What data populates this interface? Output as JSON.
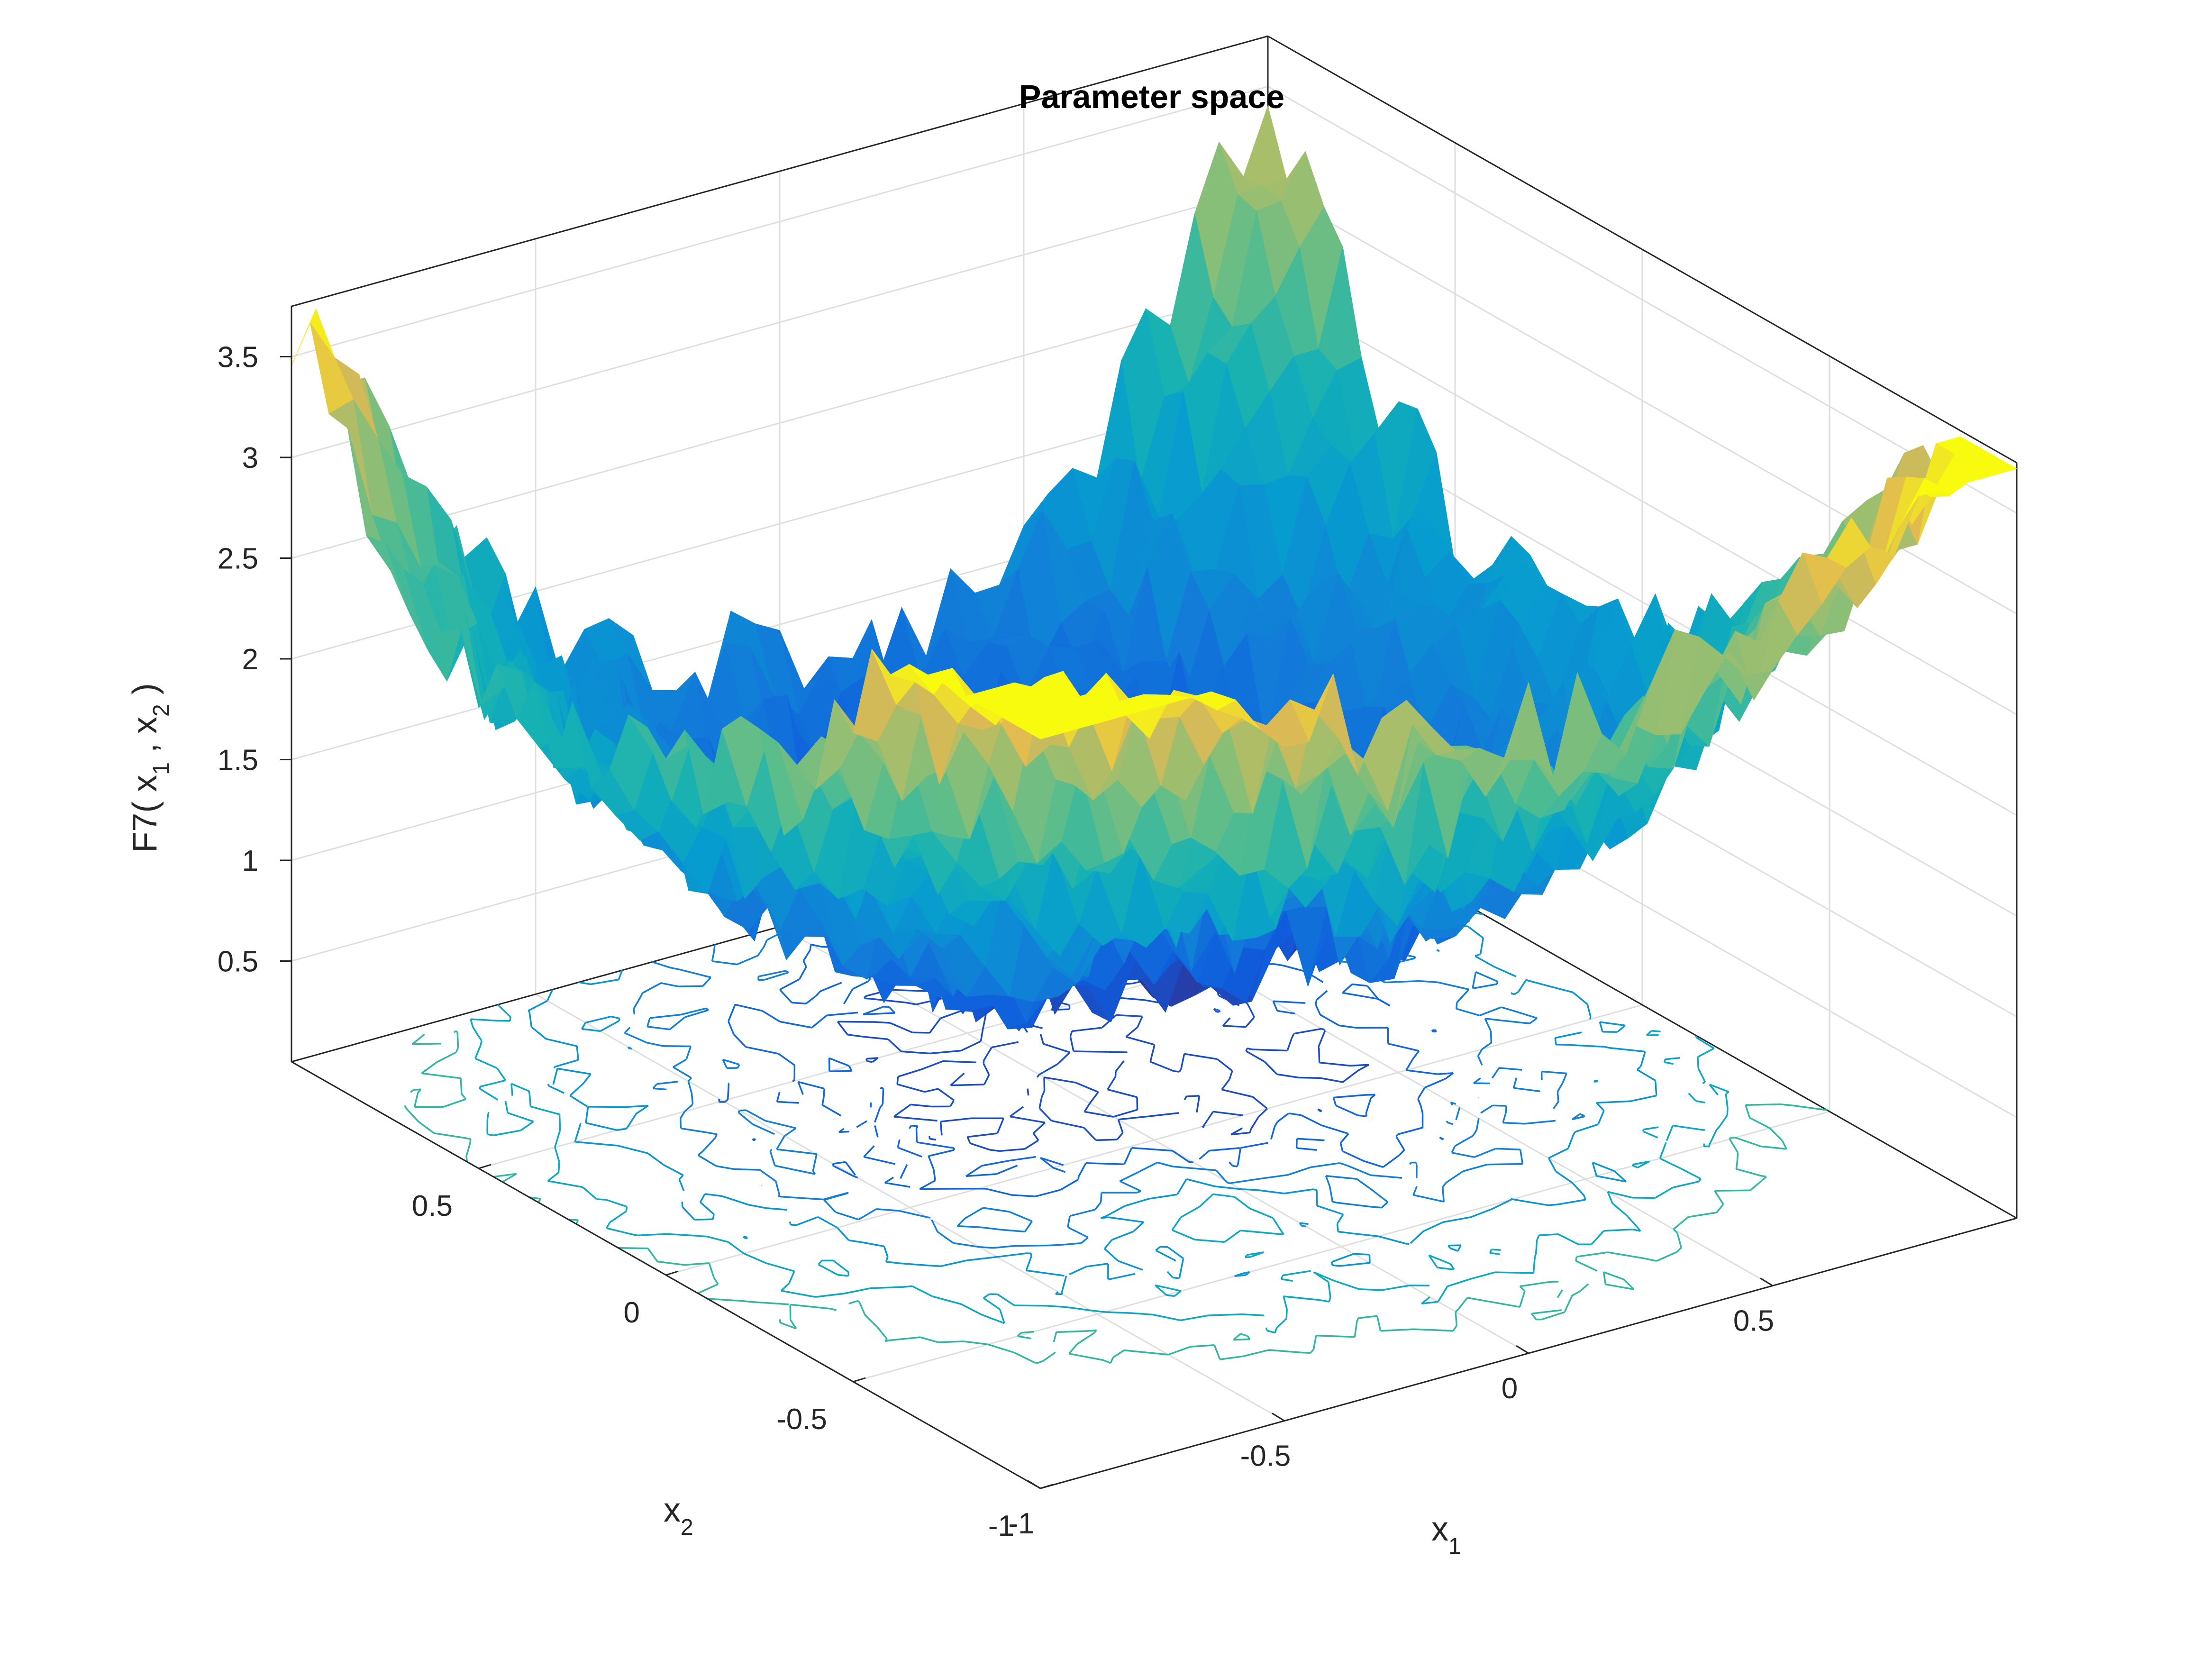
{
  "chart_data": {
    "type": "surface",
    "title": "Parameter space",
    "xlabel": "x_1",
    "ylabel": "x_2",
    "zlabel": "F7( x_1 , x_2 )",
    "xlabel_main": "x",
    "xlabel_sub": "1",
    "ylabel_main": "x",
    "ylabel_sub": "2",
    "zlabel_parts": [
      "F7( x",
      "1",
      " , x",
      "2",
      " )"
    ],
    "xlim": [
      -1,
      1
    ],
    "ylim": [
      -1,
      1
    ],
    "zlim": [
      0,
      3.75
    ],
    "x_ticks": [
      "-1",
      "-0.5",
      "0",
      "0.5"
    ],
    "x_tick_values": [
      -1,
      -0.5,
      0,
      0.5
    ],
    "y_ticks": [
      "-1",
      "-0.5",
      "0",
      "0.5"
    ],
    "y_tick_values": [
      -1,
      -0.5,
      0,
      0.5
    ],
    "z_ticks": [
      "0.5",
      "1",
      "1.5",
      "2",
      "2.5",
      "3",
      "3.5"
    ],
    "z_tick_values": [
      0.5,
      1,
      1.5,
      2,
      2.5,
      3,
      3.5
    ],
    "grid": true,
    "colormap": "parula",
    "base_contour": true,
    "peak_points": [
      {
        "x": -1,
        "y": 1,
        "z": 3.3
      },
      {
        "x": 1,
        "y": 1,
        "z": 3.7
      },
      {
        "x": 1,
        "y": -1,
        "z": 2.5
      },
      {
        "x": -1,
        "y": -1,
        "z": 2.3
      },
      {
        "x": -0.1,
        "y": -0.3,
        "z": 1.9
      }
    ],
    "minimum_point": {
      "x": 0.1,
      "y": 0.3,
      "z": 0.6
    }
  }
}
